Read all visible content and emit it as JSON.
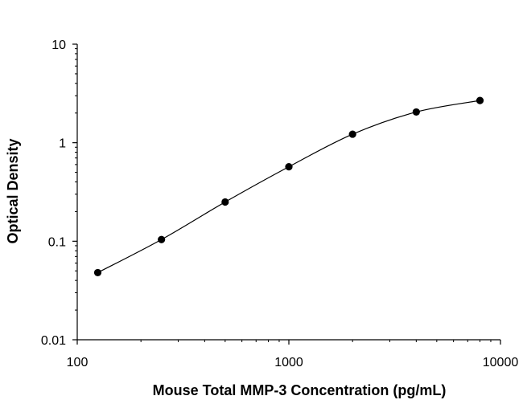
{
  "chart_data": {
    "type": "scatter",
    "title": "",
    "xlabel": "Mouse Total MMP-3 Concentration (pg/mL)",
    "ylabel": "Optical Density",
    "xscale": "log",
    "yscale": "log",
    "xlim": [
      100,
      10000
    ],
    "ylim": [
      0.01,
      10
    ],
    "x_ticks": [
      100,
      1000,
      10000
    ],
    "x_tick_labels": [
      "100",
      "1000",
      "10000"
    ],
    "y_ticks": [
      0.01,
      0.1,
      1,
      10
    ],
    "y_tick_labels": [
      "0.01",
      "0.1",
      "1",
      "10"
    ],
    "grid": false,
    "legend": "none",
    "series": [
      {
        "x": [
          125,
          250,
          500,
          1000,
          2000,
          4000,
          8000
        ],
        "y": [
          0.048,
          0.104,
          0.25,
          0.57,
          1.22,
          2.05,
          2.68
        ]
      }
    ],
    "fit_curve": "smooth curve through points",
    "colors": {
      "point": "#000000",
      "curve": "#000000",
      "axis": "#000000"
    }
  }
}
